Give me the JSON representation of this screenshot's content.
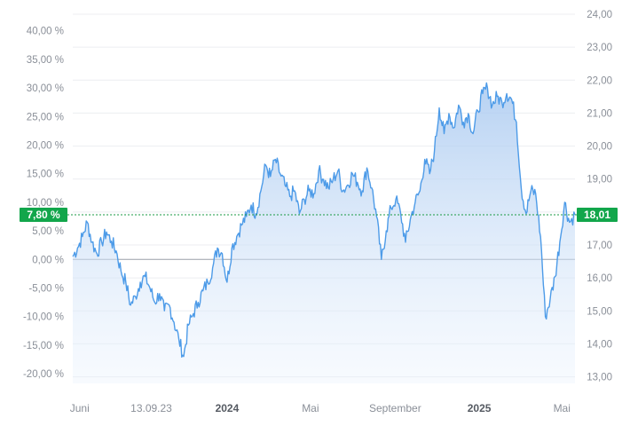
{
  "chart_data": {
    "type": "area",
    "title": "",
    "xlabel": "",
    "ylabel": "",
    "grid": true,
    "legend": "none",
    "x_ticks": [
      {
        "date": "2023-06-01",
        "label": "Juni",
        "bold": false
      },
      {
        "date": "2023-09-13",
        "label": "13.09.23",
        "bold": false
      },
      {
        "date": "2024-01-01",
        "label": "2024",
        "bold": true
      },
      {
        "date": "2024-05-01",
        "label": "Mai",
        "bold": false
      },
      {
        "date": "2024-09-01",
        "label": "September",
        "bold": false
      },
      {
        "date": "2025-01-01",
        "label": "2025",
        "bold": true
      },
      {
        "date": "2025-05-01",
        "label": "Mai",
        "bold": false
      }
    ],
    "x_range": [
      "2023-05-22",
      "2025-05-20"
    ],
    "y_left": {
      "unit": "%",
      "range": [
        -21.7,
        42.9
      ],
      "ticks": [
        "40,00 %",
        "35,00 %",
        "30,00 %",
        "25,00 %",
        "20,00 %",
        "15,00 %",
        "10,00 %",
        "5,00 %",
        "0,00 %",
        "-5,00 %",
        "-10,00 %",
        "-15,00 %",
        "-20,00 %"
      ],
      "tick_values": [
        40,
        35,
        30,
        25,
        20,
        15,
        10,
        5,
        0,
        -5,
        -10,
        -15,
        -20
      ],
      "zero_line": 0
    },
    "y_right": {
      "range": [
        12.8,
        24.0
      ],
      "ticks": [
        "24,00",
        "23,00",
        "22,00",
        "21,00",
        "20,00",
        "19,00",
        "18,00",
        "17,00",
        "16,00",
        "15,00",
        "14,00",
        "13,00"
      ],
      "tick_values": [
        24,
        23,
        22,
        21,
        20,
        19,
        18,
        17,
        16,
        15,
        14,
        13
      ]
    },
    "current": {
      "percent": 7.8,
      "percent_label": "7,80 %",
      "price": 18.01,
      "price_label": "18,01"
    },
    "series": [
      {
        "unit": "%",
        "points": [
          [
            "2023-05-22",
            0.5
          ],
          [
            "2023-05-29",
            2.0
          ],
          [
            "2023-06-05",
            4.0
          ],
          [
            "2023-06-12",
            6.5
          ],
          [
            "2023-06-19",
            3.0
          ],
          [
            "2023-06-26",
            1.0
          ],
          [
            "2023-07-03",
            3.0
          ],
          [
            "2023-07-10",
            4.8
          ],
          [
            "2023-07-17",
            3.2
          ],
          [
            "2023-07-24",
            1.5
          ],
          [
            "2023-07-31",
            -2.0
          ],
          [
            "2023-08-07",
            -4.0
          ],
          [
            "2023-08-14",
            -8.0
          ],
          [
            "2023-08-21",
            -6.5
          ],
          [
            "2023-08-28",
            -4.0
          ],
          [
            "2023-09-04",
            -3.0
          ],
          [
            "2023-09-11",
            -5.0
          ],
          [
            "2023-09-18",
            -7.5
          ],
          [
            "2023-09-25",
            -6.0
          ],
          [
            "2023-10-02",
            -9.0
          ],
          [
            "2023-10-09",
            -8.0
          ],
          [
            "2023-10-16",
            -11.0
          ],
          [
            "2023-10-23",
            -14.0
          ],
          [
            "2023-10-30",
            -17.0
          ],
          [
            "2023-11-06",
            -11.5
          ],
          [
            "2023-11-13",
            -9.5
          ],
          [
            "2023-11-20",
            -7.5
          ],
          [
            "2023-11-27",
            -5.5
          ],
          [
            "2023-12-04",
            -4.0
          ],
          [
            "2023-12-11",
            -1.5
          ],
          [
            "2023-12-18",
            2.0
          ],
          [
            "2023-12-25",
            1.0
          ],
          [
            "2024-01-01",
            -4.0
          ],
          [
            "2024-01-08",
            2.0
          ],
          [
            "2024-01-15",
            4.0
          ],
          [
            "2024-01-22",
            6.0
          ],
          [
            "2024-01-29",
            7.5
          ],
          [
            "2024-02-05",
            9.5
          ],
          [
            "2024-02-12",
            8.0
          ],
          [
            "2024-02-19",
            12.0
          ],
          [
            "2024-02-26",
            16.5
          ],
          [
            "2024-03-04",
            14.5
          ],
          [
            "2024-03-11",
            17.5
          ],
          [
            "2024-03-18",
            15.0
          ],
          [
            "2024-03-25",
            13.0
          ],
          [
            "2024-04-01",
            11.0
          ],
          [
            "2024-04-08",
            12.0
          ],
          [
            "2024-04-15",
            8.0
          ],
          [
            "2024-04-22",
            10.5
          ],
          [
            "2024-04-29",
            12.0
          ],
          [
            "2024-05-06",
            11.5
          ],
          [
            "2024-05-13",
            15.5
          ],
          [
            "2024-05-20",
            14.0
          ],
          [
            "2024-05-27",
            12.5
          ],
          [
            "2024-06-03",
            14.0
          ],
          [
            "2024-06-10",
            15.5
          ],
          [
            "2024-06-17",
            12.0
          ],
          [
            "2024-06-24",
            13.0
          ],
          [
            "2024-07-01",
            15.0
          ],
          [
            "2024-07-08",
            13.5
          ],
          [
            "2024-07-15",
            12.0
          ],
          [
            "2024-07-22",
            16.0
          ],
          [
            "2024-07-29",
            12.5
          ],
          [
            "2024-08-05",
            7.5
          ],
          [
            "2024-08-12",
            0.0
          ],
          [
            "2024-08-19",
            5.0
          ],
          [
            "2024-08-26",
            9.0
          ],
          [
            "2024-09-02",
            10.5
          ],
          [
            "2024-09-09",
            8.0
          ],
          [
            "2024-09-16",
            3.0
          ],
          [
            "2024-09-23",
            7.0
          ],
          [
            "2024-09-30",
            10.0
          ],
          [
            "2024-10-07",
            12.0
          ],
          [
            "2024-10-14",
            17.5
          ],
          [
            "2024-10-21",
            15.0
          ],
          [
            "2024-10-28",
            19.0
          ],
          [
            "2024-11-04",
            26.5
          ],
          [
            "2024-11-11",
            22.0
          ],
          [
            "2024-11-18",
            25.5
          ],
          [
            "2024-11-25",
            23.0
          ],
          [
            "2024-12-02",
            27.0
          ],
          [
            "2024-12-09",
            24.0
          ],
          [
            "2024-12-16",
            25.5
          ],
          [
            "2024-12-23",
            22.0
          ],
          [
            "2024-12-30",
            26.0
          ],
          [
            "2025-01-06",
            29.0
          ],
          [
            "2025-01-13",
            30.0
          ],
          [
            "2025-01-20",
            27.0
          ],
          [
            "2025-01-27",
            28.5
          ],
          [
            "2025-02-03",
            27.5
          ],
          [
            "2025-02-10",
            29.0
          ],
          [
            "2025-02-17",
            28.0
          ],
          [
            "2025-02-24",
            24.0
          ],
          [
            "2025-03-03",
            12.5
          ],
          [
            "2025-03-10",
            8.0
          ],
          [
            "2025-03-17",
            12.0
          ],
          [
            "2025-03-24",
            11.5
          ],
          [
            "2025-03-31",
            4.0
          ],
          [
            "2025-04-07",
            -10.0
          ],
          [
            "2025-04-14",
            -7.0
          ],
          [
            "2025-04-21",
            -3.0
          ],
          [
            "2025-04-28",
            3.0
          ],
          [
            "2025-05-05",
            10.0
          ],
          [
            "2025-05-12",
            6.5
          ],
          [
            "2025-05-20",
            7.8
          ]
        ]
      }
    ]
  }
}
